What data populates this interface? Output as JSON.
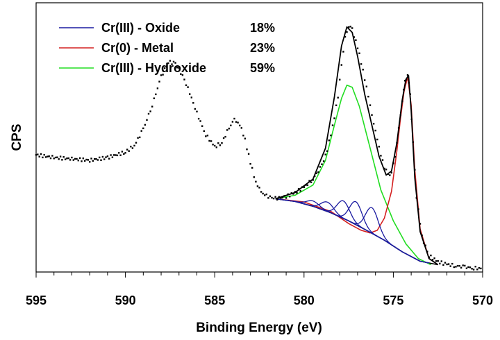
{
  "chart_data": {
    "type": "scatter",
    "xlabel": "Binding Energy (eV)",
    "ylabel": "CPS",
    "xlim": [
      595,
      570
    ],
    "x_reversed": true,
    "ylim": [
      0,
      100
    ],
    "y_ticks_shown": false,
    "x_ticks": [
      595,
      590,
      585,
      580,
      575,
      570
    ],
    "x_tick_labels": [
      "595",
      "590",
      "585",
      "580",
      "575",
      "570"
    ],
    "grid": false,
    "legend_position": "top-left",
    "legend": [
      {
        "label": "Cr(III) - Oxide",
        "percent": "18%",
        "color": "#1a1aa0"
      },
      {
        "label": "Cr(0) - Metal",
        "percent": "23%",
        "color": "#d42020"
      },
      {
        "label": "Cr(III) - Hydroxide",
        "percent": "59%",
        "color": "#22dd22"
      }
    ],
    "series": [
      {
        "name": "Cr(III) - Hydroxide",
        "kind": "component",
        "color": "#22dd22",
        "x": [
          581.6,
          580.5,
          579.5,
          578.8,
          578.3,
          577.9,
          577.6,
          577.3,
          576.9,
          576.3,
          575.7,
          575.0,
          574.3,
          573.6,
          572.9
        ],
        "y": [
          27.2,
          28.5,
          32.3,
          41.5,
          54.5,
          64.5,
          69.4,
          68.6,
          61.5,
          46.0,
          30.5,
          19.0,
          10.5,
          5.0,
          2.7
        ]
      },
      {
        "name": "Cr(0) - Metal",
        "kind": "component",
        "color": "#d42020",
        "x": [
          581.6,
          580.0,
          578.5,
          577.5,
          576.8,
          576.3,
          575.9,
          575.5,
          575.1,
          574.8,
          574.6,
          574.4,
          574.2,
          574.0,
          573.8,
          573.5,
          573.0,
          572.5
        ],
        "y": [
          27.2,
          26.0,
          22.5,
          18.0,
          15.5,
          14.5,
          15.5,
          20.0,
          30.0,
          45.0,
          57.0,
          67.0,
          72.5,
          62.0,
          38.0,
          16.0,
          5.0,
          2.7
        ]
      },
      {
        "name": "Cr(III) - Oxide",
        "kind": "component",
        "color": "#1a1aa0",
        "peaks": [
          {
            "center": 579.5,
            "height": 2.0
          },
          {
            "center": 578.7,
            "height": 3.5
          },
          {
            "center": 577.8,
            "height": 6.5
          },
          {
            "center": 577.1,
            "height": 8.5
          },
          {
            "center": 576.2,
            "height": 9.5
          }
        ],
        "x": [
          581.6,
          580.5,
          579.5,
          578.5,
          577.5,
          576.5,
          575.5,
          574.5,
          573.5,
          572.5
        ],
        "y": [
          27.2,
          26.2,
          24.4,
          22.0,
          19.0,
          15.5,
          11.8,
          7.5,
          4.0,
          2.7
        ]
      },
      {
        "name": "Fit envelope",
        "kind": "envelope",
        "color": "#000000",
        "x": [
          581.6,
          580.5,
          579.5,
          578.8,
          578.3,
          577.9,
          577.6,
          577.3,
          577.0,
          576.6,
          576.2,
          575.8,
          575.4,
          575.1,
          574.8,
          574.5,
          574.3,
          574.15,
          574.0,
          573.8,
          573.5,
          573.0,
          572.5
        ],
        "y": [
          27.2,
          29.5,
          34.5,
          46.0,
          65.0,
          84.0,
          91.0,
          89.0,
          80.0,
          66.0,
          54.5,
          43.0,
          36.0,
          37.5,
          48.0,
          64.0,
          71.5,
          73.0,
          60.0,
          35.0,
          15.0,
          5.0,
          2.7
        ]
      },
      {
        "name": "Background",
        "kind": "background",
        "color": "#000000",
        "x": [
          581.6,
          580.5,
          579.5,
          578.5,
          577.5,
          576.5,
          575.5,
          574.5,
          573.5,
          572.5
        ],
        "y": [
          27.2,
          26.2,
          24.4,
          22.0,
          19.0,
          15.5,
          11.8,
          7.5,
          4.0,
          2.7
        ]
      },
      {
        "name": "Measured",
        "kind": "data",
        "color": "#000000",
        "x": [
          595.0,
          594.0,
          593.0,
          592.0,
          591.0,
          590.0,
          589.5,
          589.0,
          588.5,
          588.0,
          587.6,
          587.2,
          586.8,
          586.4,
          586.0,
          585.5,
          585.0,
          584.6,
          584.2,
          583.9,
          583.6,
          583.3,
          583.0,
          582.7,
          582.4,
          582.0,
          581.6,
          581.0,
          580.5,
          580.0,
          579.5,
          579.0,
          578.7,
          578.4,
          578.1,
          577.9,
          577.7,
          577.5,
          577.3,
          577.0,
          576.7,
          576.4,
          576.1,
          575.8,
          575.5,
          575.3,
          575.1,
          574.9,
          574.7,
          574.5,
          574.35,
          574.2,
          574.05,
          573.9,
          573.7,
          573.4,
          573.0,
          572.5,
          572.0,
          571.5,
          571.0,
          570.5,
          570.0
        ],
        "y": [
          43.5,
          42.5,
          42.0,
          41.5,
          42.5,
          44.5,
          47.0,
          53.0,
          62.0,
          72.5,
          78.0,
          77.5,
          73.0,
          66.5,
          59.0,
          51.0,
          46.5,
          48.0,
          53.5,
          56.5,
          55.0,
          49.0,
          40.5,
          33.5,
          29.5,
          28.0,
          27.3,
          28.0,
          29.5,
          31.5,
          34.5,
          39.5,
          45.5,
          54.0,
          65.0,
          77.0,
          87.0,
          91.5,
          90.0,
          83.5,
          75.0,
          65.0,
          55.5,
          46.0,
          39.0,
          36.0,
          37.0,
          43.0,
          53.0,
          64.0,
          70.5,
          73.5,
          66.0,
          48.0,
          28.0,
          13.0,
          6.0,
          3.8,
          2.8,
          2.3,
          1.8,
          1.5,
          1.2
        ]
      }
    ]
  }
}
